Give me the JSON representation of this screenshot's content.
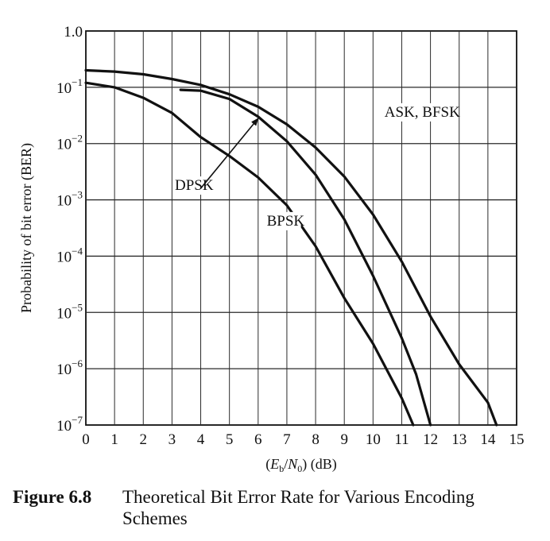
{
  "chart_data": {
    "type": "line",
    "xlabel": {
      "open": "(",
      "E": "E",
      "E_sub": "b",
      "slash": "/",
      "N": "N",
      "N_sub": "0",
      "close": ") (dB)"
    },
    "ylabel": "Probability of bit error (BER)",
    "xlim": [
      0,
      15
    ],
    "ylim": [
      1e-07,
      1.0
    ],
    "y_scale": "log",
    "grid": true,
    "x_ticks": [
      "0",
      "1",
      "2",
      "3",
      "4",
      "5",
      "6",
      "7",
      "8",
      "9",
      "10",
      "11",
      "12",
      "13",
      "14",
      "15"
    ],
    "y_ticks": [
      {
        "value": 1.0,
        "base": "1.0",
        "exp": ""
      },
      {
        "value": 0.1,
        "base": "10",
        "exp": "−1"
      },
      {
        "value": 0.01,
        "base": "10",
        "exp": "−2"
      },
      {
        "value": 0.001,
        "base": "10",
        "exp": "−3"
      },
      {
        "value": 0.0001,
        "base": "10",
        "exp": "−4"
      },
      {
        "value": 1e-05,
        "base": "10",
        "exp": "−5"
      },
      {
        "value": 1e-06,
        "base": "10",
        "exp": "−6"
      },
      {
        "value": 1e-07,
        "base": "10",
        "exp": "−7"
      }
    ],
    "series": [
      {
        "name": "ASK, BFSK",
        "x": [
          0,
          1,
          2,
          3,
          4,
          5,
          6,
          7,
          8,
          9,
          10,
          11,
          12,
          13,
          14,
          14.3
        ],
        "y": [
          0.2,
          0.19,
          0.17,
          0.14,
          0.11,
          0.075,
          0.045,
          0.022,
          0.0085,
          0.0026,
          0.00055,
          8e-05,
          8.5e-06,
          1.2e-06,
          2.5e-07,
          1e-07
        ]
      },
      {
        "name": "DPSK",
        "x": [
          3.3,
          4,
          5,
          6,
          7,
          8,
          9,
          10,
          11,
          11.5,
          12
        ],
        "y": [
          0.09,
          0.087,
          0.062,
          0.03,
          0.011,
          0.0028,
          0.00045,
          4.5e-05,
          3.5e-06,
          8e-07,
          1e-07
        ]
      },
      {
        "name": "BPSK",
        "x": [
          0,
          1,
          2,
          3,
          4,
          5,
          6,
          7,
          8,
          9,
          10,
          11,
          11.4
        ],
        "y": [
          0.12,
          0.1,
          0.065,
          0.035,
          0.013,
          0.006,
          0.0025,
          0.0008,
          0.00015,
          1.8e-05,
          2.8e-06,
          3e-07,
          1e-07
        ]
      }
    ],
    "annotations": [
      {
        "text": "ASK, BFSK",
        "x": 10.4,
        "y": 0.03
      },
      {
        "text": "DPSK",
        "x": 3.1,
        "y": 0.0015
      },
      {
        "text": "BPSK",
        "x": 6.3,
        "y": 0.00035
      }
    ],
    "arrow": {
      "from": {
        "x": 4.0,
        "y": 0.0016
      },
      "to": {
        "x": 6.0,
        "y": 0.028
      }
    }
  },
  "caption": {
    "number": "Figure 6.8",
    "text": "Theoretical Bit Error Rate for Various Encoding Schemes"
  }
}
